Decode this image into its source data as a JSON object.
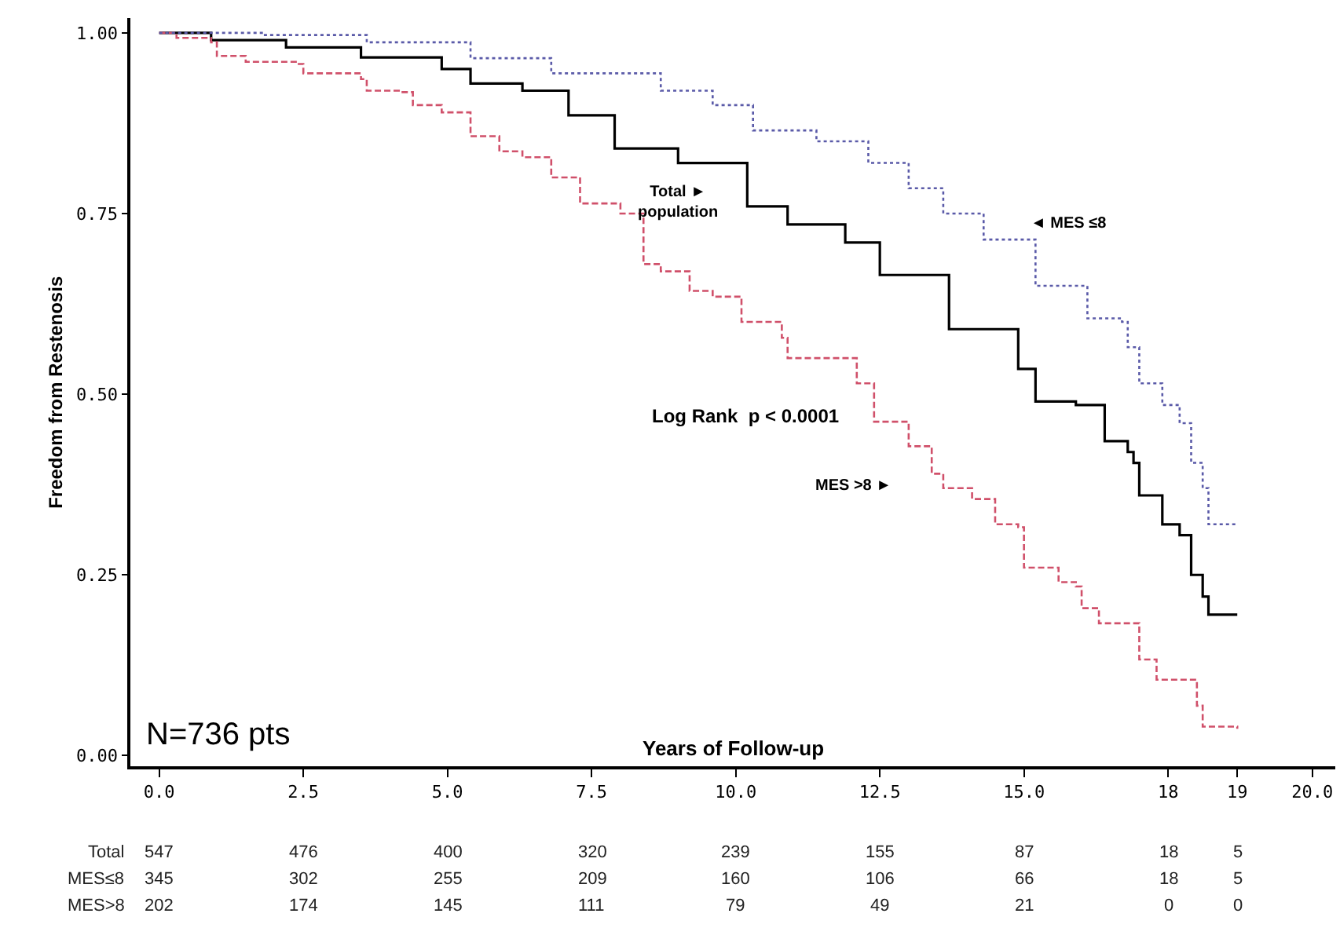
{
  "chart_data": [
    {
      "type": "step",
      "ylabel": "Freedom from Restenosis",
      "xlabel": "Years of Follow-up",
      "xlim": [
        -0.5,
        20.4
      ],
      "ylim": [
        -0.015,
        1.02
      ],
      "xticks": [
        {
          "value": 0,
          "label": "0.0"
        },
        {
          "value": 2.5,
          "label": "2.5"
        },
        {
          "value": 5,
          "label": "5.0"
        },
        {
          "value": 7.5,
          "label": "7.5"
        },
        {
          "value": 10,
          "label": "10.0"
        },
        {
          "value": 12.5,
          "label": "12.5"
        },
        {
          "value": 15,
          "label": "15.0"
        },
        {
          "value": 17.5,
          "label": "18"
        },
        {
          "value": 18.7,
          "label": "19"
        },
        {
          "value": 20,
          "label": "20.0"
        }
      ],
      "yticks": [
        {
          "value": 0,
          "label": "0.00"
        },
        {
          "value": 0.25,
          "label": "0.25"
        },
        {
          "value": 0.5,
          "label": "0.50"
        },
        {
          "value": 0.75,
          "label": "0.75"
        },
        {
          "value": 1,
          "label": "1.00"
        }
      ],
      "legend": false,
      "series": [
        {
          "color": "#000000",
          "line_style": "solid",
          "x": [
            0,
            0.9,
            2.2,
            3.5,
            4.9,
            5.4,
            6.3,
            7.1,
            7.9,
            9.0,
            10.2,
            10.9,
            11.9,
            12.5,
            13.7,
            14.9,
            15.2,
            15.9,
            16.4,
            16.8,
            16.9,
            17.0,
            17.4,
            17.7,
            17.9,
            18.1,
            18.2,
            18.7
          ],
          "values": [
            1.0,
            0.99,
            0.98,
            0.966,
            0.95,
            0.93,
            0.92,
            0.886,
            0.84,
            0.82,
            0.76,
            0.735,
            0.71,
            0.665,
            0.59,
            0.535,
            0.49,
            0.485,
            0.435,
            0.42,
            0.405,
            0.36,
            0.32,
            0.305,
            0.25,
            0.22,
            0.195,
            0.195
          ]
        },
        {
          "color": "#5a5aa8",
          "line_style": "dotted",
          "x": [
            0,
            1.8,
            3.6,
            5.4,
            6.8,
            8.7,
            9.6,
            10.3,
            11.4,
            12.3,
            13.0,
            13.6,
            14.3,
            15.2,
            15.9,
            16.1,
            16.7,
            16.8,
            17.0,
            17.4,
            17.7,
            17.9,
            18.1,
            18.2,
            18.7
          ],
          "values": [
            1.0,
            0.997,
            0.987,
            0.965,
            0.944,
            0.92,
            0.9,
            0.865,
            0.85,
            0.82,
            0.785,
            0.75,
            0.714,
            0.65,
            0.65,
            0.605,
            0.6,
            0.565,
            0.515,
            0.485,
            0.46,
            0.405,
            0.37,
            0.32,
            0.32
          ]
        },
        {
          "color": "#d0506a",
          "line_style": "dashed",
          "x": [
            0,
            0.3,
            0.9,
            1.0,
            1.5,
            2.4,
            2.5,
            3.5,
            3.6,
            4.2,
            4.4,
            4.9,
            5.4,
            5.9,
            6.3,
            6.8,
            7.3,
            8.0,
            8.4,
            8.7,
            9.2,
            9.6,
            10.1,
            10.8,
            10.9,
            12.1,
            12.4,
            13.0,
            13.4,
            13.6,
            14.1,
            14.5,
            14.9,
            15.0,
            15.6,
            15.9,
            16.0,
            16.3,
            16.9,
            17.0,
            17.3,
            17.9,
            18.0,
            18.1,
            18.7
          ],
          "values": [
            1.0,
            0.993,
            0.987,
            0.968,
            0.96,
            0.957,
            0.944,
            0.936,
            0.92,
            0.918,
            0.9,
            0.89,
            0.857,
            0.836,
            0.828,
            0.8,
            0.764,
            0.75,
            0.68,
            0.67,
            0.643,
            0.635,
            0.6,
            0.578,
            0.55,
            0.515,
            0.462,
            0.428,
            0.39,
            0.37,
            0.355,
            0.32,
            0.316,
            0.26,
            0.24,
            0.234,
            0.204,
            0.183,
            0.183,
            0.133,
            0.105,
            0.105,
            0.069,
            0.04,
            0.037
          ]
        }
      ],
      "annotations": [
        "Total ►\npopulation",
        "◄ MES ≤8",
        "MES >8 ►",
        "Log Rank  p < 0.0001",
        "N=736 pts"
      ]
    },
    {
      "type": "other",
      "annotations": [
        "Total",
        "547",
        "476",
        "400",
        "320",
        "239",
        "155",
        "87",
        "18",
        "5",
        "MES≤8",
        "345",
        "302",
        "255",
        "209",
        "160",
        "106",
        "66",
        "18",
        "5",
        "MES>8",
        "202",
        "174",
        "145",
        "111",
        "79",
        "49",
        "21",
        "0",
        "0"
      ]
    }
  ]
}
